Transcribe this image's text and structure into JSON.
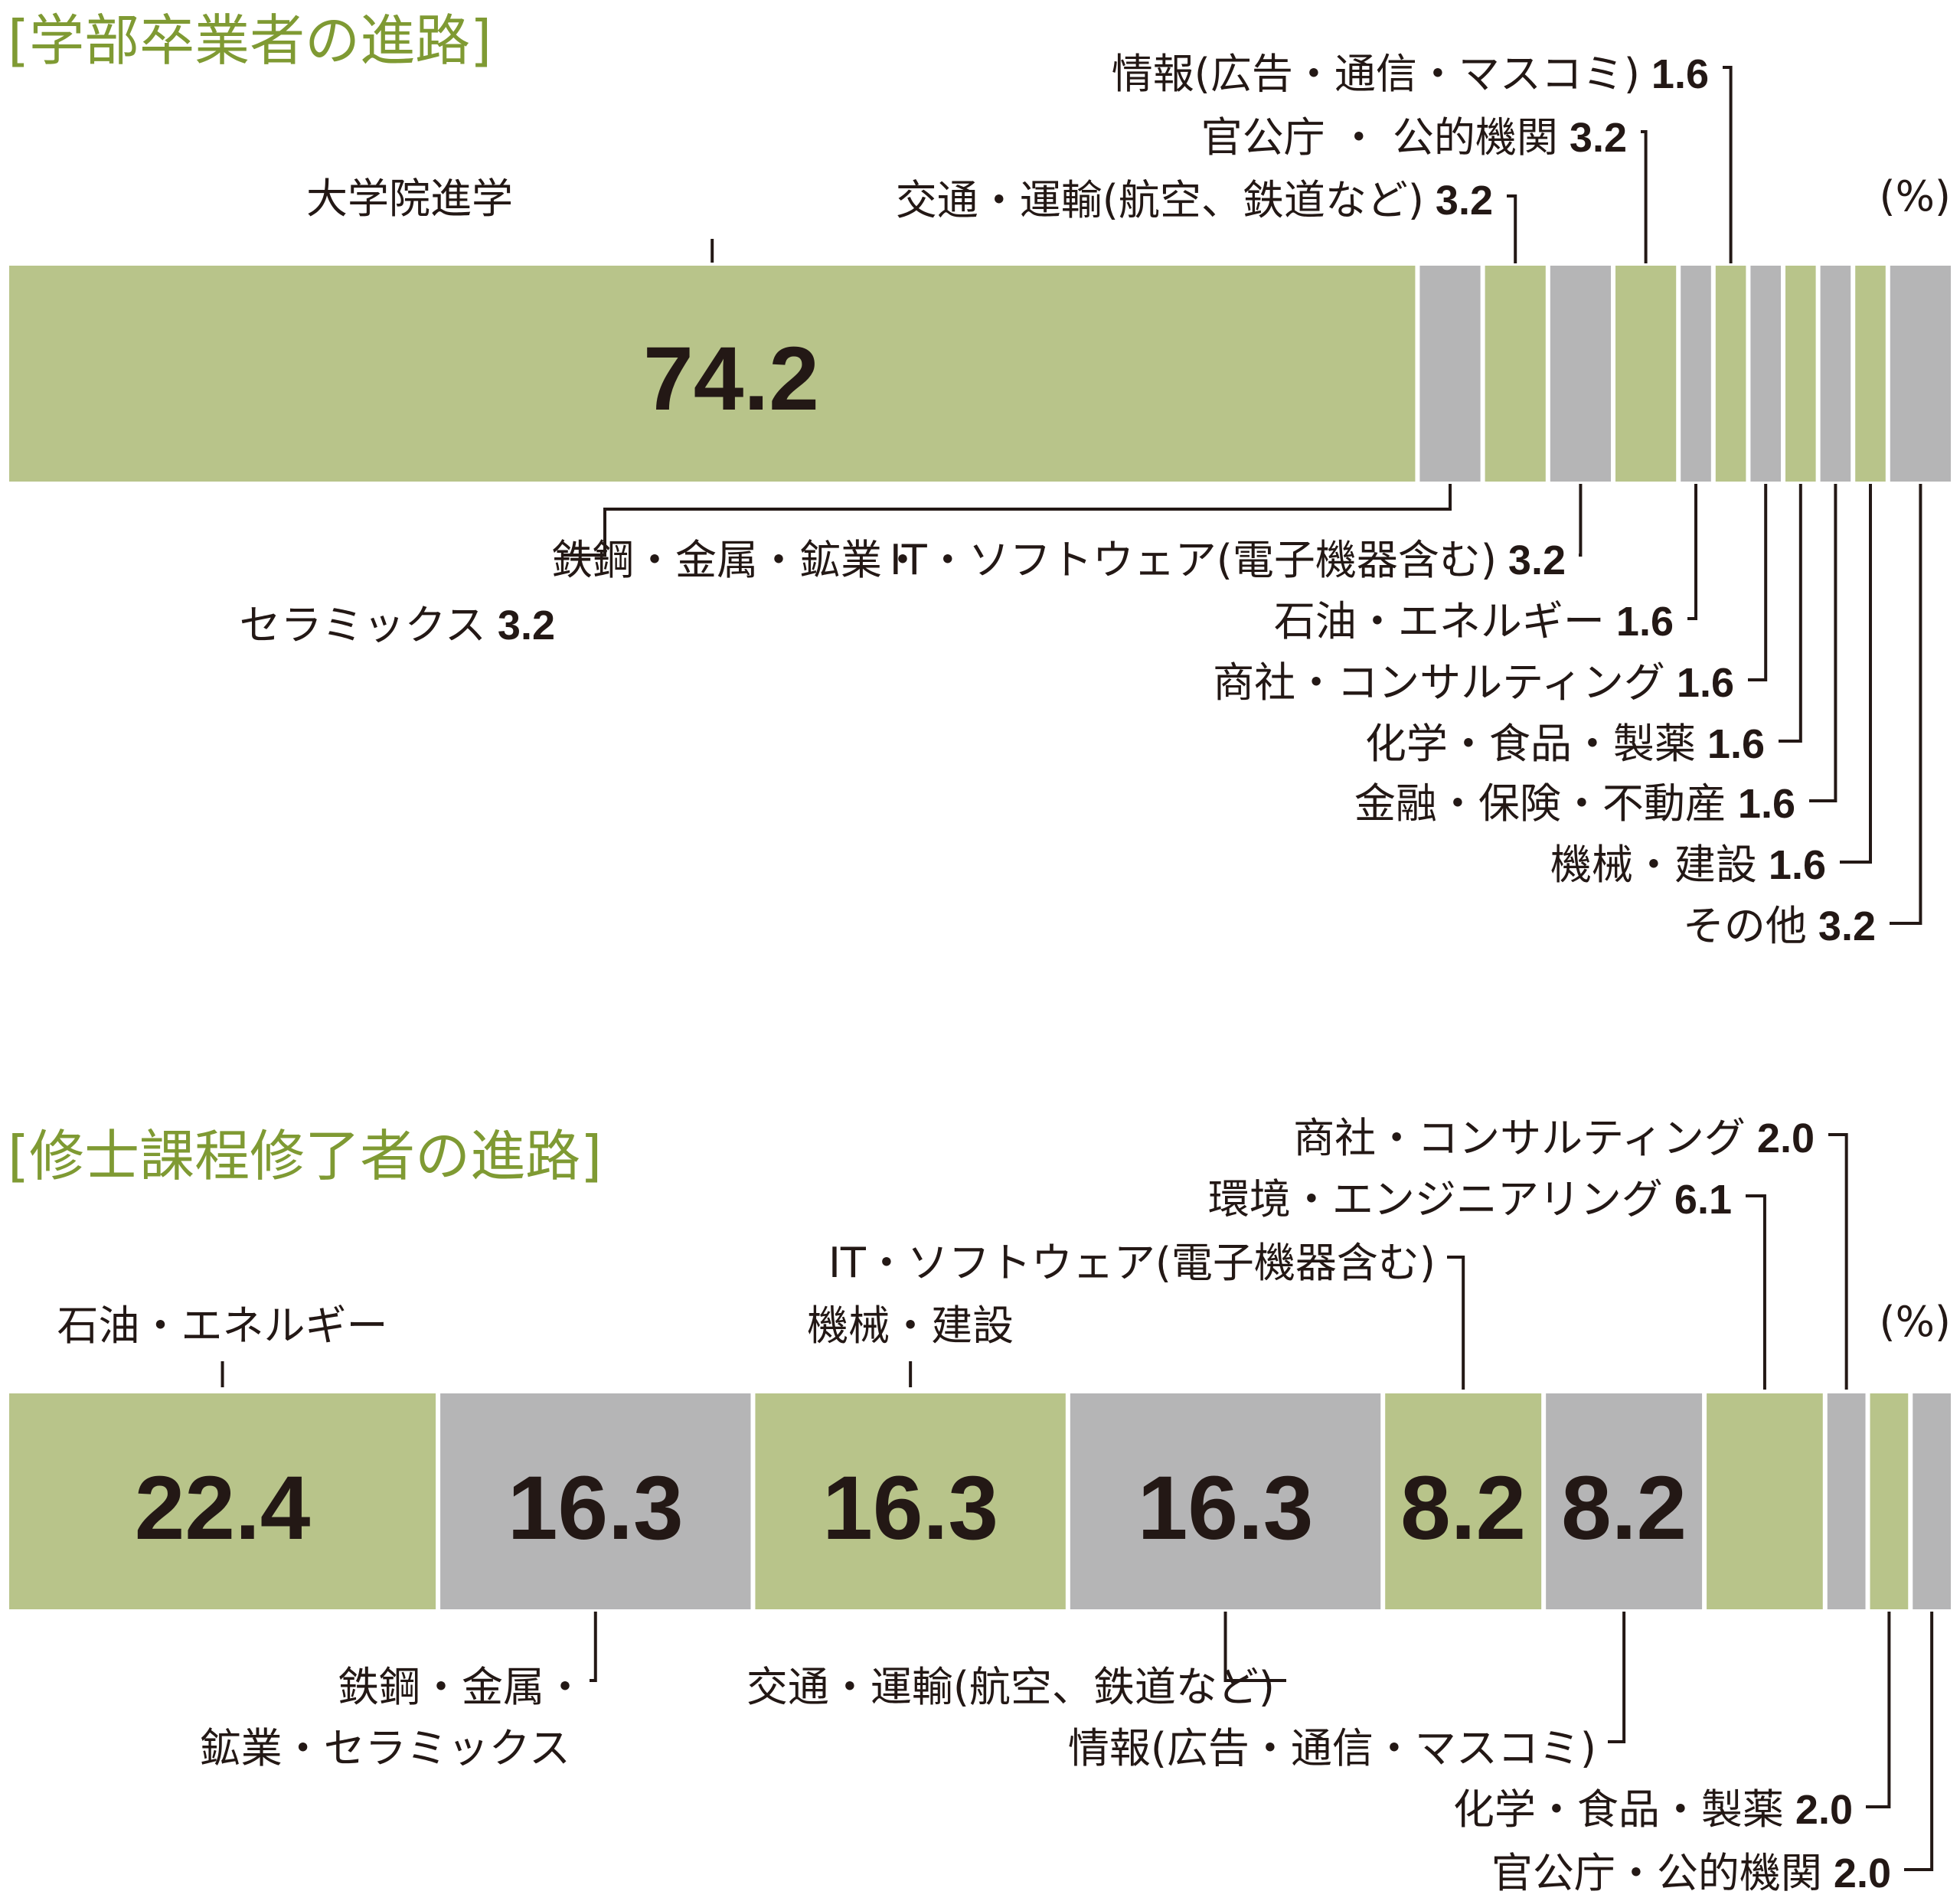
{
  "colors": {
    "green": "#b8c48a",
    "gray": "#b5b5b6",
    "title": "#7f9a33",
    "ink": "#231815"
  },
  "chart_data": [
    {
      "type": "bar",
      "stacked_horizontal": true,
      "title": "[学部卒業者の進路]",
      "unit": "(%)",
      "segments": [
        {
          "name": "大学院進学",
          "value": 74.2,
          "color": "green",
          "inside_label": "74.2",
          "label": "大学院進学"
        },
        {
          "name": "鉄鋼・金属・鉱業・セラミックス",
          "value": 3.2,
          "color": "gray",
          "label": "鉄鋼・金属・鉱業・",
          "label2": "セラミックス",
          "value_label": "3.2"
        },
        {
          "name": "交通・運輸(航空、鉄道など)",
          "value": 3.2,
          "color": "green",
          "label": "交通・運輸(航空、鉄道など)",
          "value_label": "3.2"
        },
        {
          "name": "IT・ソフトウェア(電子機器含む)",
          "value": 3.2,
          "color": "gray",
          "label": "IT・ソフトウェア(電子機器含む)",
          "value_label": "3.2"
        },
        {
          "name": "官公庁・公的機関",
          "value": 3.2,
          "color": "green",
          "label": "官公庁 ・ 公的機関",
          "value_label": "3.2"
        },
        {
          "name": "石油・エネルギー",
          "value": 1.6,
          "color": "gray",
          "label": "石油・エネルギー",
          "value_label": "1.6"
        },
        {
          "name": "情報(広告・通信・マスコミ)",
          "value": 1.6,
          "color": "green",
          "label": "情報(広告・通信・マスコミ)",
          "value_label": "1.6"
        },
        {
          "name": "商社・コンサルティング",
          "value": 1.6,
          "color": "gray",
          "label": "商社・コンサルティング",
          "value_label": "1.6"
        },
        {
          "name": "化学・食品・製薬",
          "value": 1.6,
          "color": "green",
          "label": "化学・食品・製薬",
          "value_label": "1.6"
        },
        {
          "name": "金融・保険・不動産",
          "value": 1.6,
          "color": "gray",
          "label": "金融・保険・不動産",
          "value_label": "1.6"
        },
        {
          "name": "機械・建設",
          "value": 1.6,
          "color": "green",
          "label": "機械・建設",
          "value_label": "1.6"
        },
        {
          "name": "その他",
          "value": 3.2,
          "color": "gray",
          "label": "その他",
          "value_label": "3.2"
        }
      ]
    },
    {
      "type": "bar",
      "stacked_horizontal": true,
      "title": "[修士課程修了者の進路]",
      "unit": "(%)",
      "segments": [
        {
          "name": "石油・エネルギー",
          "value": 22.4,
          "color": "green",
          "inside_label": "22.4",
          "label": "石油・エネルギー"
        },
        {
          "name": "鉄鋼・金属・鉱業・セラミックス",
          "value": 16.3,
          "color": "gray",
          "inside_label": "16.3",
          "label": "鉄鋼・金属・",
          "label2": "鉱業・セラミックス"
        },
        {
          "name": "機械・建設",
          "value": 16.3,
          "color": "green",
          "inside_label": "16.3",
          "label": "機械・建設"
        },
        {
          "name": "交通・運輸(航空、鉄道など)",
          "value": 16.3,
          "color": "gray",
          "inside_label": "16.3",
          "label": "交通・運輸(航空、鉄道など)"
        },
        {
          "name": "IT・ソフトウェア(電子機器含む)",
          "value": 8.2,
          "color": "green",
          "inside_label": "8.2",
          "label": "IT・ソフトウェア(電子機器含む)"
        },
        {
          "name": "情報(広告・通信・マスコミ)",
          "value": 8.2,
          "color": "gray",
          "inside_label": "8.2",
          "label": "情報(広告・通信・マスコミ)"
        },
        {
          "name": "環境・エンジニアリング",
          "value": 6.1,
          "color": "green",
          "label": "環境・エンジニアリング",
          "value_label": "6.1"
        },
        {
          "name": "商社・コンサルティング",
          "value": 2.0,
          "color": "gray",
          "label": "商社・コンサルティング",
          "value_label": "2.0"
        },
        {
          "name": "化学・食品・製薬",
          "value": 2.0,
          "color": "green",
          "label": "化学・食品・製薬",
          "value_label": "2.0"
        },
        {
          "name": "官公庁・公的機関",
          "value": 2.0,
          "color": "gray",
          "label": "官公庁・公的機関",
          "value_label": "2.0"
        }
      ]
    }
  ]
}
